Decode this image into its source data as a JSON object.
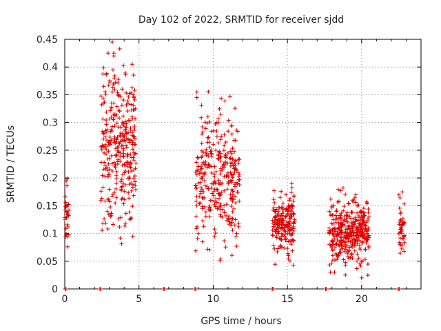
{
  "chart_data": {
    "type": "scatter",
    "title": "Day 102 of 2022, SRMTID for receiver sjdd",
    "xlabel": "GPS time / hours",
    "ylabel": "SRMTID / TECUs",
    "xlim": [
      0,
      24
    ],
    "ylim": [
      0,
      0.45
    ],
    "xticks": [
      0,
      5,
      10,
      15,
      20
    ],
    "xtick_labels": [
      "0",
      "5",
      "10",
      "15",
      "20"
    ],
    "yticks": [
      0,
      0.05,
      0.1,
      0.15,
      0.2,
      0.25,
      0.3,
      0.35,
      0.4,
      0.45
    ],
    "ytick_labels": [
      "0",
      "0.05",
      "0.1",
      "0.15",
      "0.2",
      "0.25",
      "0.3",
      "0.35",
      "0.4",
      "0.45"
    ],
    "grid": true,
    "marker": "plus",
    "color": "#dd0000",
    "series": [
      {
        "name": "sjdd",
        "clusters": [
          {
            "x_range": [
              0.0,
              0.3
            ],
            "y_range": [
              0.07,
              0.2
            ],
            "count": 28
          },
          {
            "x_range": [
              2.4,
              4.8
            ],
            "y_range": [
              0.06,
              0.45
            ],
            "count": 330
          },
          {
            "x_range": [
              8.8,
              11.8
            ],
            "y_range": [
              0.05,
              0.36
            ],
            "count": 320
          },
          {
            "x_range": [
              14.0,
              15.5
            ],
            "y_range": [
              0.04,
              0.19
            ],
            "count": 200
          },
          {
            "x_range": [
              17.8,
              20.5
            ],
            "y_range": [
              0.02,
              0.18
            ],
            "count": 380
          },
          {
            "x_range": [
              22.5,
              22.9
            ],
            "y_range": [
              0.04,
              0.17
            ],
            "count": 45
          }
        ],
        "points": [
          [
            3.2,
            0.445
          ],
          [
            3.3,
            0.425
          ],
          [
            3.3,
            0.42
          ],
          [
            3.25,
            0.395
          ],
          [
            3.35,
            0.38
          ],
          [
            4.55,
            0.405
          ],
          [
            3.2,
            0.355
          ],
          [
            3.3,
            0.335
          ],
          [
            4.6,
            0.35
          ],
          [
            4.65,
            0.345
          ],
          [
            8.9,
            0.355
          ],
          [
            8.9,
            0.345
          ],
          [
            10.05,
            0.285
          ],
          [
            11.0,
            0.245
          ],
          [
            15.3,
            0.19
          ],
          [
            18.75,
            0.182
          ],
          [
            22.75,
            0.175
          ],
          [
            0.2,
            0.076
          ],
          [
            0.1,
            0.195
          ],
          [
            20.0,
            0.02
          ],
          [
            17.9,
            0.03
          ]
        ],
        "zeros": [
          0.05,
          2.4,
          6.7,
          8.8,
          14.0,
          17.6,
          22.5
        ]
      }
    ]
  }
}
